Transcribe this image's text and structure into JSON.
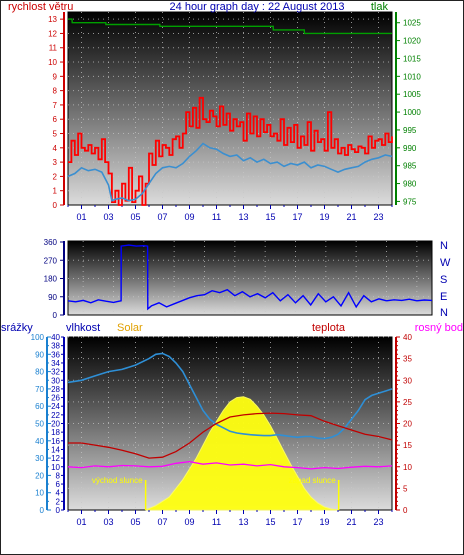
{
  "chart_data": [
    {
      "id": "wind_pressure",
      "type": "line",
      "title": "24 hour graph day : 22 August 2013",
      "ylabel_left": "rychlost větru",
      "ylabel_right": "tlak",
      "x_ticks": [
        "01",
        "03",
        "05",
        "07",
        "09",
        "11",
        "13",
        "15",
        "17",
        "19",
        "21",
        "23"
      ],
      "y_left_ticks": [
        0,
        1,
        2,
        3,
        4,
        5,
        6,
        7,
        8,
        9,
        10,
        11,
        12,
        13
      ],
      "y_right_ticks": [
        975,
        980,
        985,
        990,
        995,
        1000,
        1005,
        1010,
        1015,
        1020,
        1025
      ],
      "ylim_left": [
        0,
        13.5
      ],
      "ylim_right": [
        974,
        1028
      ],
      "xlim": [
        0,
        24
      ],
      "colors": {
        "gust": "#ff0000",
        "wind": "#3b8fd0",
        "pressure": "#00a000",
        "left_axis": "#cc0000",
        "right_axis": "#008000"
      },
      "series": [
        {
          "key": "gust",
          "x": [
            0,
            0.25,
            0.5,
            0.75,
            1,
            1.25,
            1.5,
            1.75,
            2,
            2.25,
            2.5,
            2.75,
            3,
            3.25,
            3.5,
            3.75,
            4,
            4.25,
            4.5,
            4.75,
            5,
            5.25,
            5.5,
            5.75,
            6,
            6.25,
            6.5,
            6.75,
            7,
            7.25,
            7.5,
            7.75,
            8,
            8.25,
            8.5,
            8.75,
            9,
            9.25,
            9.5,
            9.75,
            10,
            10.25,
            10.5,
            10.75,
            11,
            11.25,
            11.5,
            11.75,
            12,
            12.25,
            12.5,
            12.75,
            13,
            13.25,
            13.5,
            13.75,
            14,
            14.25,
            14.5,
            14.75,
            15,
            15.25,
            15.5,
            15.75,
            16,
            16.25,
            16.5,
            16.75,
            17,
            17.25,
            17.5,
            17.75,
            18,
            18.25,
            18.5,
            18.75,
            19,
            19.25,
            19.5,
            19.75,
            20,
            20.25,
            20.5,
            20.75,
            21,
            21.25,
            21.5,
            21.75,
            22,
            22.25,
            22.5,
            22.75,
            23,
            23.25,
            23.5,
            23.75,
            24
          ],
          "values": [
            3,
            4.5,
            3.5,
            5,
            4,
            3.8,
            4.2,
            3.6,
            4,
            3.2,
            4.6,
            3,
            2.2,
            0.2,
            1,
            0,
            1.5,
            0.3,
            2.6,
            0.2,
            1,
            2,
            0,
            1.5,
            3.6,
            2.8,
            4.5,
            3.4,
            4.2,
            4,
            3.5,
            4.6,
            4.8,
            4,
            5,
            6.5,
            5.5,
            6.8,
            5.4,
            7.5,
            6,
            5.8,
            6.6,
            6.2,
            5.5,
            6.9,
            5.6,
            6.4,
            5.2,
            6,
            5.5,
            5.8,
            4.5,
            6.4,
            5,
            6.2,
            4.8,
            6,
            5.1,
            5.6,
            4.8,
            5,
            4.5,
            6,
            4.2,
            5.4,
            4.4,
            5.6,
            4,
            4.8,
            4.2,
            5.8,
            3.8,
            5.2,
            4.4,
            4.6,
            3.8,
            6.5,
            4,
            4.6,
            3.6,
            4,
            3.5,
            4.2,
            3.9,
            3.7,
            4.1,
            4,
            3.6,
            4.8,
            4,
            4.5,
            4.6,
            4.2,
            5,
            4.4,
            4.8
          ]
        },
        {
          "key": "wind",
          "x": [
            0,
            0.5,
            1,
            1.5,
            2,
            2.5,
            3,
            3.25,
            3.5,
            4,
            4.5,
            5,
            5.25,
            5.5,
            6,
            6.5,
            7,
            7.5,
            8,
            8.5,
            9,
            9.5,
            10,
            10.5,
            11,
            11.5,
            12,
            12.5,
            13,
            13.5,
            14,
            14.5,
            15,
            15.5,
            16,
            16.5,
            17,
            17.5,
            18,
            18.5,
            19,
            19.5,
            20,
            20.5,
            21,
            21.5,
            22,
            22.5,
            23,
            23.5,
            24
          ],
          "values": [
            2,
            2.2,
            2.6,
            2.4,
            2.5,
            2.3,
            1.4,
            0.3,
            0.4,
            0.5,
            0.3,
            0.4,
            0.6,
            0.8,
            1.5,
            2.2,
            2.6,
            2.7,
            2.6,
            2.9,
            3.4,
            3.8,
            4.3,
            4.0,
            3.9,
            3.6,
            3.4,
            3.5,
            3.1,
            3.3,
            3.0,
            3.2,
            2.9,
            3.0,
            2.7,
            2.9,
            2.8,
            3.0,
            2.6,
            2.8,
            2.7,
            2.5,
            2.3,
            2.5,
            2.6,
            2.7,
            3.0,
            3.2,
            3.3,
            3.5,
            3.4
          ]
        },
        {
          "key": "pressure",
          "x": [
            0,
            0.3,
            0.31,
            2.8,
            2.81,
            6.8,
            6.81,
            12,
            12.01,
            15.2,
            15.21,
            17.5,
            17.51,
            22,
            22.01,
            24
          ],
          "values": [
            1026,
            1026,
            1025,
            1025,
            1024.5,
            1024.5,
            1024,
            1024,
            1024,
            1024,
            1023,
            1023,
            1022,
            1022,
            1022,
            1022
          ]
        }
      ]
    },
    {
      "id": "direction",
      "type": "line",
      "y_ticks": [
        0,
        90,
        180,
        270,
        360
      ],
      "compass": [
        "N",
        "W",
        "S",
        "E",
        "N"
      ],
      "ylim": [
        0,
        365
      ],
      "xlim": [
        0,
        24
      ],
      "colors": {
        "line": "#0000ff",
        "axis": "#000080"
      },
      "series": [
        {
          "key": "direction",
          "x": [
            0,
            0.5,
            1,
            1.5,
            2,
            2.5,
            3,
            3.25,
            3.5,
            3.51,
            4,
            4.5,
            5,
            5.25,
            5.26,
            5.5,
            6,
            6.5,
            7,
            7.5,
            8,
            8.5,
            9,
            9.5,
            10,
            10.5,
            11,
            11.5,
            12,
            12.5,
            13,
            13.5,
            14,
            14.5,
            15,
            15.5,
            16,
            16.5,
            17,
            17.5,
            18,
            18.5,
            19,
            19.5,
            20,
            20.5,
            21,
            21.5,
            22,
            22.5,
            23,
            23.5,
            24
          ],
          "values": [
            70,
            65,
            72,
            60,
            75,
            68,
            62,
            66,
            70,
            340,
            345,
            340,
            342,
            340,
            30,
            45,
            60,
            40,
            55,
            70,
            85,
            95,
            100,
            120,
            110,
            125,
            95,
            115,
            90,
            105,
            85,
            110,
            70,
            100,
            60,
            95,
            50,
            105,
            65,
            90,
            45,
            110,
            40,
            95,
            65,
            80,
            70,
            75,
            72,
            78,
            70,
            74,
            72
          ]
        }
      ]
    },
    {
      "id": "rain_humidity_solar_temp",
      "type": "area",
      "labels": {
        "rain": "srážky",
        "humidity": "vlhkost",
        "solar": "Solar",
        "temperature": "teplota",
        "dewpoint": "rosný bod"
      },
      "annotations": {
        "sunrise": "východ slunce",
        "sunset": "západ slunce"
      },
      "sunrise_x": 5.75,
      "sunset_x": 20.05,
      "x_ticks": [
        "01",
        "03",
        "05",
        "07",
        "09",
        "11",
        "13",
        "15",
        "17",
        "19",
        "21",
        "23"
      ],
      "y_rain_ticks": [
        0,
        10,
        20,
        30,
        40,
        50,
        60,
        70,
        80,
        90,
        100
      ],
      "y_humidity_ticks": [
        0,
        2,
        4,
        6,
        8,
        10,
        12,
        14,
        16,
        18,
        20,
        22,
        24,
        26,
        28,
        30,
        32,
        34,
        36,
        38,
        40
      ],
      "y_temp_ticks": [
        0,
        5,
        10,
        15,
        20,
        25,
        30,
        35,
        40
      ],
      "ylim_humidity": [
        0,
        40
      ],
      "ylim_temp": [
        0,
        40
      ],
      "xlim": [
        0,
        24
      ],
      "colors": {
        "rain_axis": "#1a80d0",
        "humidity": "#2e8fd6",
        "solar": "#ffff10",
        "solar_label": "#e0a000",
        "temperature": "#c00000",
        "dewpoint": "#ff00ff",
        "annotation": "#ffff00"
      },
      "series": [
        {
          "key": "humidity",
          "x": [
            0,
            1,
            2,
            3,
            4,
            5,
            6,
            6.5,
            7,
            7.5,
            8,
            8.5,
            9,
            9.5,
            10,
            10.5,
            11,
            11.5,
            12,
            12.5,
            13,
            13.5,
            14,
            14.5,
            15,
            15.5,
            16,
            16.5,
            17,
            17.5,
            18,
            18.5,
            19,
            19.5,
            20,
            20.5,
            21,
            21.5,
            22,
            22.5,
            23,
            23.5,
            24
          ],
          "values": [
            29.5,
            30,
            31,
            32,
            32.5,
            33.5,
            35,
            36,
            36.2,
            35.5,
            34,
            32,
            29,
            26,
            23,
            21,
            19.8,
            19,
            18.2,
            17.8,
            17.6,
            17.4,
            17.3,
            17.2,
            17.2,
            17.4,
            17.2,
            17,
            16.8,
            17,
            17,
            16.6,
            16.5,
            16.8,
            17.5,
            19,
            21,
            23,
            25.5,
            26.5,
            27,
            27.5,
            28
          ]
        },
        {
          "key": "temperature",
          "x": [
            0,
            1,
            2,
            3,
            4,
            5,
            6,
            7,
            8,
            9,
            10,
            11,
            12,
            13,
            14,
            15,
            16,
            17,
            18,
            19,
            20,
            21,
            22,
            23,
            24
          ],
          "values": [
            15.5,
            15.5,
            15,
            14.5,
            13.8,
            13,
            12,
            12.2,
            13.5,
            15.5,
            18,
            20,
            21.5,
            22,
            22.3,
            22.4,
            22.3,
            22,
            21.8,
            20.5,
            19.5,
            18.5,
            17.5,
            17,
            16.2
          ]
        },
        {
          "key": "dewpoint",
          "x": [
            0,
            1,
            2,
            3,
            4,
            5,
            6,
            7,
            8,
            9,
            10,
            11,
            12,
            13,
            14,
            15,
            16,
            17,
            18,
            19,
            20,
            21,
            22,
            23,
            24
          ],
          "values": [
            10,
            9.8,
            10.2,
            10,
            10.3,
            10.2,
            10,
            10.1,
            10.8,
            11.2,
            10.6,
            10.9,
            10.4,
            10.6,
            10.2,
            10.5,
            10,
            9.8,
            9.5,
            9.8,
            9.6,
            9.9,
            10.1,
            10,
            10.2
          ]
        },
        {
          "key": "solar",
          "x": [
            5.75,
            6.5,
            7.5,
            8.5,
            9.5,
            10.5,
            11.5,
            12,
            12.5,
            13,
            13.5,
            14,
            14.5,
            15,
            15.5,
            16,
            16.5,
            17,
            17.5,
            18,
            18.5,
            19,
            19.5,
            20.05
          ],
          "values": [
            0,
            1,
            3,
            7,
            12,
            18,
            23,
            25,
            26,
            26.2,
            25.6,
            24,
            22,
            19.5,
            16.5,
            13.5,
            10.5,
            7.8,
            5,
            3,
            1.6,
            0.7,
            0.2,
            0
          ]
        }
      ]
    }
  ]
}
